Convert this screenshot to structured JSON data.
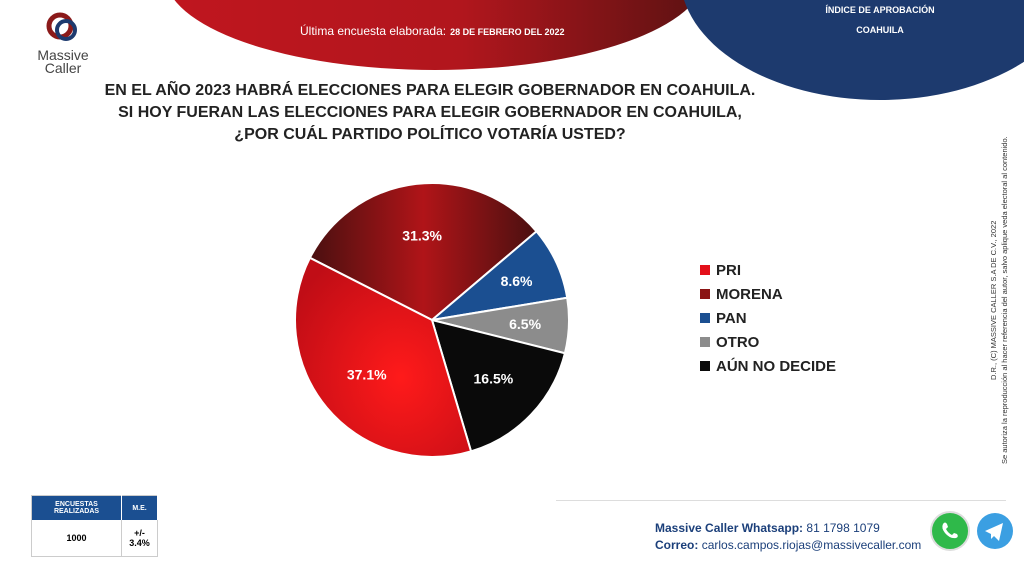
{
  "header": {
    "subtitle_label": "Última encuesta elaborada:",
    "subtitle_date": "28 DE FEBRERO DEL 2022",
    "right_line1": "ÍNDICE DE APROBACIÓN",
    "right_line2": "COAHUILA",
    "logo_line1": "Massive",
    "logo_line2": "Caller"
  },
  "question": [
    "EN EL AÑO 2023 HABRÁ ELECCIONES PARA ELEGIR GOBERNADOR EN COAHUILA.",
    "SI HOY FUERAN LAS ELECCIONES PARA ELEGIR GOBERNADOR EN COAHUILA,",
    "¿POR CUÁL PARTIDO POLÍTICO VOTARÍA USTED?"
  ],
  "chart_data": {
    "type": "pie",
    "categories": [
      "PRI",
      "MORENA",
      "PAN",
      "OTRO",
      "AÚN NO DECIDE"
    ],
    "values": [
      37.1,
      31.3,
      8.6,
      6.5,
      16.5
    ],
    "labels": [
      "37.1%",
      "31.3%",
      "8.6%",
      "6.5%",
      "16.5%"
    ],
    "colors": [
      "#e3101a",
      "#8b1414",
      "#1b4f91",
      "#8c8c8c",
      "#0a0a0a"
    ],
    "legend": "right"
  },
  "side_text": {
    "line1": "D.R., (C) MASSIVE CALLER S.A DE C.V., 2022",
    "line2": "Se autoriza la reproducción al hacer referencia del autor, salvo aplique veda electoral al contenido."
  },
  "table": {
    "headers": [
      "ENCUESTAS REALIZADAS",
      "M.E."
    ],
    "values": [
      "1000",
      "+/- 3.4%"
    ]
  },
  "contact": {
    "whatsapp_label": "Massive Caller Whatsapp:",
    "whatsapp": "81 1798 1079",
    "email_label": "Correo:",
    "email": "carlos.campos.riojas@massivecaller.com"
  }
}
